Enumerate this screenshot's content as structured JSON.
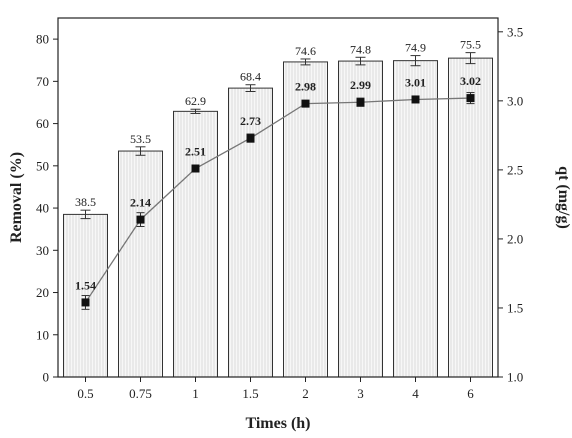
{
  "chart_data": {
    "type": "bar",
    "categories": [
      "0.5",
      "0.75",
      "1",
      "1.5",
      "2",
      "3",
      "4",
      "6"
    ],
    "xlabel": "Times (h)",
    "ylabel": "Removal (%)",
    "y2label": "qt (mg/g)",
    "ylim": [
      0,
      85
    ],
    "y2lim": [
      1.0,
      3.6
    ],
    "yticks": [
      "0",
      "10",
      "20",
      "30",
      "40",
      "50",
      "60",
      "70",
      "80"
    ],
    "y2ticks": [
      "1.0",
      "1.5",
      "2.0",
      "2.5",
      "3.0",
      "3.5"
    ],
    "series": [
      {
        "name": "Removal (%)",
        "type": "bar",
        "axis": "left",
        "values": [
          38.5,
          53.5,
          62.9,
          68.4,
          74.6,
          74.8,
          74.9,
          75.5
        ],
        "labels": [
          "38.5",
          "53.5",
          "62.9",
          "68.4",
          "74.6",
          "74.8",
          "74.9",
          "75.5"
        ],
        "errors": [
          1.0,
          1.0,
          0.5,
          0.8,
          0.7,
          0.9,
          1.2,
          1.3
        ]
      },
      {
        "name": "qt (mg/g)",
        "type": "line",
        "axis": "right",
        "values": [
          1.54,
          2.14,
          2.51,
          2.73,
          2.98,
          2.99,
          3.01,
          3.02
        ],
        "labels": [
          "1.54",
          "2.14",
          "2.51",
          "2.73",
          "2.98",
          "2.99",
          "3.01",
          "3.02"
        ],
        "errors": [
          0.05,
          0.05,
          0.0,
          0.03,
          0.0,
          0.03,
          0.02,
          0.04
        ]
      }
    ],
    "colors": {
      "bar_fill": "#f4f4f4",
      "bar_stroke": "#333333",
      "line": "#777777",
      "marker": "#111111",
      "axis": "#222222"
    }
  }
}
